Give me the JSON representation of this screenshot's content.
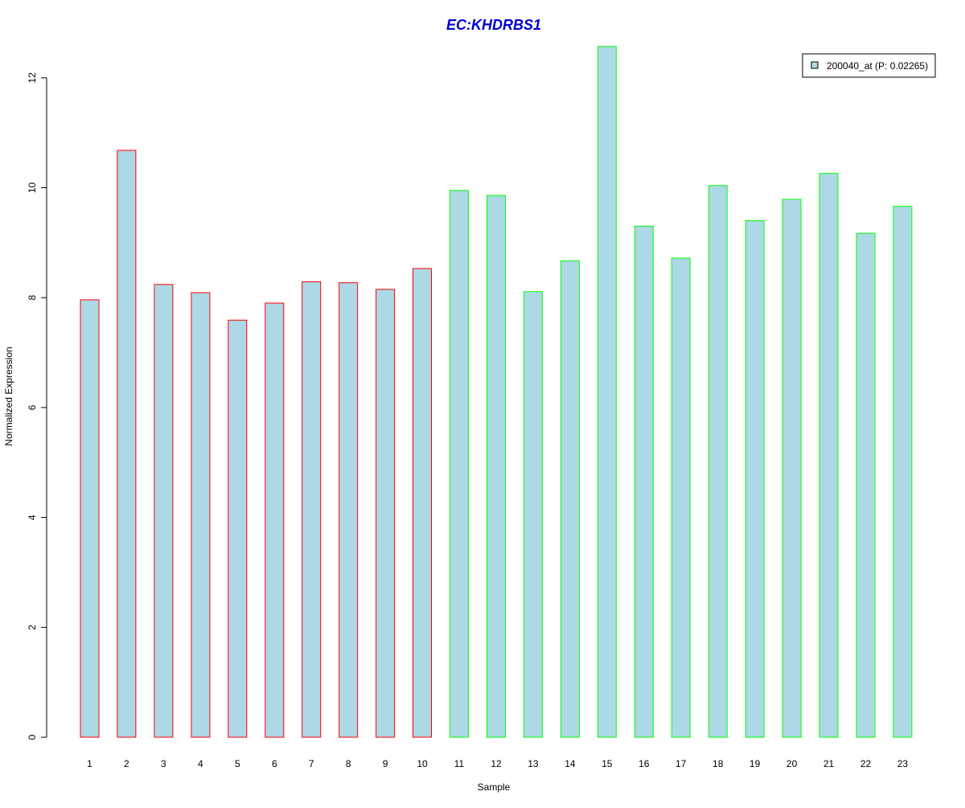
{
  "chart_data": {
    "type": "bar",
    "title": "EC:KHDRBS1",
    "xlabel": "Sample",
    "ylabel": "Normalized Expression",
    "categories": [
      "1",
      "2",
      "3",
      "4",
      "5",
      "6",
      "7",
      "8",
      "9",
      "10",
      "11",
      "12",
      "13",
      "14",
      "15",
      "16",
      "17",
      "18",
      "19",
      "20",
      "21",
      "22",
      "23"
    ],
    "series": [
      {
        "name": "200040_at (P: 0.02265)",
        "values": [
          7.96,
          10.68,
          8.24,
          8.09,
          7.59,
          7.9,
          8.29,
          8.27,
          8.15,
          8.53,
          9.95,
          9.86,
          8.11,
          8.67,
          12.57,
          9.3,
          8.72,
          10.04,
          9.4,
          9.79,
          10.26,
          9.17,
          9.66
        ]
      }
    ],
    "groups": [
      {
        "samples": [
          "1",
          "2",
          "3",
          "4",
          "5",
          "6",
          "7",
          "8",
          "9",
          "10"
        ],
        "border_color": "#ff0000"
      },
      {
        "samples": [
          "11",
          "12",
          "13",
          "14",
          "15",
          "16",
          "17",
          "18",
          "19",
          "20",
          "21",
          "22",
          "23"
        ],
        "border_color": "#00ff00"
      }
    ],
    "yticks": [
      0,
      2,
      4,
      6,
      8,
      10,
      12
    ],
    "ylim": [
      0,
      12.6
    ],
    "grid": false,
    "legend_position": "top-right",
    "colors": {
      "bar_fill": "#add8e6",
      "title": "#0000cc",
      "axis": "#000000"
    }
  }
}
